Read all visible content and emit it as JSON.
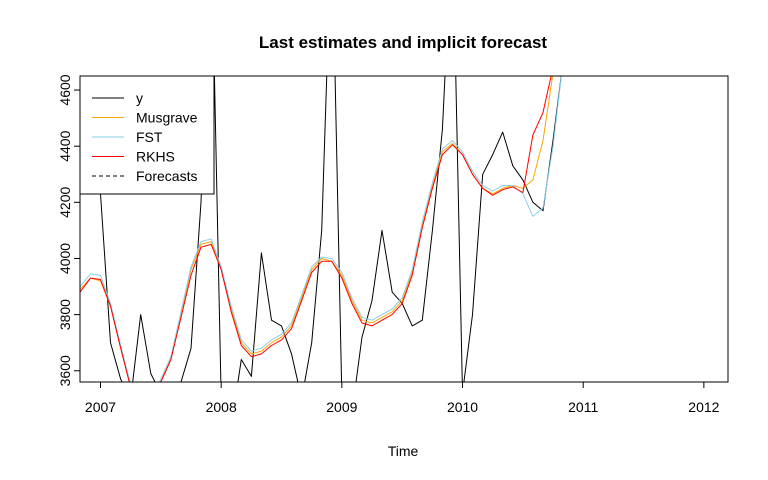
{
  "chart_data": {
    "type": "line",
    "title": "Last estimates and implicit forecast",
    "xlabel": "Time",
    "ylabel": "",
    "xlim": [
      2006.83,
      2012.2
    ],
    "ylim": [
      3560,
      4650
    ],
    "x_ticks": [
      2007,
      2008,
      2009,
      2010,
      2011,
      2012
    ],
    "y_ticks": [
      3600,
      3800,
      4000,
      4200,
      4400,
      4600
    ],
    "grid": false,
    "legend_position": "top-left",
    "legend": [
      {
        "label": "y",
        "color": "#000000",
        "dash": false
      },
      {
        "label": "Musgrave",
        "color": "#FFA500",
        "dash": false
      },
      {
        "label": "FST",
        "color": "#87CEEB",
        "dash": false
      },
      {
        "label": "RKHS",
        "color": "#FF0000",
        "dash": false
      },
      {
        "label": "Forecasts",
        "color": "#000000",
        "dash": true
      }
    ],
    "series": [
      {
        "name": "y",
        "color": "#000000",
        "x": [
          2006.83,
          2006.917,
          2007.0,
          2007.083,
          2007.167,
          2007.25,
          2007.333,
          2007.417,
          2007.5,
          2007.583,
          2007.667,
          2007.75,
          2007.833,
          2007.917,
          2008.0,
          2008.083,
          2008.167,
          2008.25,
          2008.333,
          2008.417,
          2008.5,
          2008.583,
          2008.667,
          2008.75,
          2008.833,
          2008.917,
          2009.0,
          2009.083,
          2009.167,
          2009.25,
          2009.333,
          2009.417,
          2009.5,
          2009.583,
          2009.667,
          2009.75,
          2009.833,
          2009.917,
          2010.0,
          2010.083,
          2010.167,
          2010.25,
          2010.333,
          2010.417,
          2010.5,
          2010.583,
          2010.667,
          2010.75,
          2010.833
        ],
        "values": [
          4240,
          4260,
          4230,
          3700,
          3570,
          3500,
          3800,
          3590,
          3520,
          3550,
          3560,
          3680,
          4200,
          5200,
          3500,
          3400,
          3640,
          3580,
          4020,
          3780,
          3760,
          3660,
          3500,
          3700,
          4100,
          5200,
          3500,
          3450,
          3720,
          3850,
          4100,
          3880,
          3840,
          3760,
          3780,
          4100,
          4460,
          5200,
          3520,
          3800,
          4300,
          4370,
          4450,
          4330,
          4280,
          4200,
          4170,
          4420,
          4700
        ]
      },
      {
        "name": "Musgrave",
        "color": "#FFA500",
        "x": [
          2006.83,
          2006.917,
          2007.0,
          2007.083,
          2007.167,
          2007.25,
          2007.333,
          2007.417,
          2007.5,
          2007.583,
          2007.667,
          2007.75,
          2007.833,
          2007.917,
          2008.0,
          2008.083,
          2008.167,
          2008.25,
          2008.333,
          2008.417,
          2008.5,
          2008.583,
          2008.667,
          2008.75,
          2008.833,
          2008.917,
          2009.0,
          2009.083,
          2009.167,
          2009.25,
          2009.333,
          2009.417,
          2009.5,
          2009.583,
          2009.667,
          2009.75,
          2009.833,
          2009.917,
          2010.0,
          2010.083,
          2010.167,
          2010.25,
          2010.333,
          2010.417,
          2010.5,
          2010.583,
          2010.667,
          2010.75
        ],
        "values": [
          3890,
          3930,
          3920,
          3830,
          3680,
          3540,
          3460,
          3480,
          3560,
          3640,
          3800,
          3960,
          4050,
          4060,
          3960,
          3820,
          3700,
          3660,
          3670,
          3700,
          3720,
          3760,
          3860,
          3960,
          4000,
          3990,
          3940,
          3850,
          3780,
          3770,
          3790,
          3810,
          3850,
          3950,
          4120,
          4260,
          4380,
          4410,
          4370,
          4300,
          4250,
          4230,
          4250,
          4260,
          4250,
          4280,
          4420,
          4660
        ]
      },
      {
        "name": "FST",
        "color": "#87CEEB",
        "x": [
          2006.83,
          2006.917,
          2007.0,
          2007.083,
          2007.167,
          2007.25,
          2007.333,
          2007.417,
          2007.5,
          2007.583,
          2007.667,
          2007.75,
          2007.833,
          2007.917,
          2008.0,
          2008.083,
          2008.167,
          2008.25,
          2008.333,
          2008.417,
          2008.5,
          2008.583,
          2008.667,
          2008.75,
          2008.833,
          2008.917,
          2009.0,
          2009.083,
          2009.167,
          2009.25,
          2009.333,
          2009.417,
          2009.5,
          2009.583,
          2009.667,
          2009.75,
          2009.833,
          2009.917,
          2010.0,
          2010.083,
          2010.167,
          2010.25,
          2010.333,
          2010.417,
          2010.5,
          2010.583,
          2010.667,
          2010.75,
          2010.833
        ],
        "values": [
          3900,
          3945,
          3940,
          3840,
          3690,
          3550,
          3470,
          3490,
          3570,
          3650,
          3810,
          3970,
          4060,
          4070,
          3970,
          3830,
          3710,
          3670,
          3680,
          3710,
          3730,
          3770,
          3870,
          3970,
          4005,
          4000,
          3950,
          3860,
          3790,
          3780,
          3800,
          3820,
          3860,
          3960,
          4130,
          4270,
          4390,
          4420,
          4380,
          4310,
          4260,
          4240,
          4260,
          4260,
          4230,
          4150,
          4180,
          4400,
          4700
        ]
      },
      {
        "name": "RKHS",
        "color": "#FF0000",
        "x": [
          2006.83,
          2006.917,
          2007.0,
          2007.083,
          2007.167,
          2007.25,
          2007.333,
          2007.417,
          2007.5,
          2007.583,
          2007.667,
          2007.75,
          2007.833,
          2007.917,
          2008.0,
          2008.083,
          2008.167,
          2008.25,
          2008.333,
          2008.417,
          2008.5,
          2008.583,
          2008.667,
          2008.75,
          2008.833,
          2008.917,
          2009.0,
          2009.083,
          2009.167,
          2009.25,
          2009.333,
          2009.417,
          2009.5,
          2009.583,
          2009.667,
          2009.75,
          2009.833,
          2009.917,
          2010.0,
          2010.083,
          2010.167,
          2010.25,
          2010.333,
          2010.417,
          2010.5,
          2010.583,
          2010.667,
          2010.75
        ],
        "values": [
          3880,
          3930,
          3925,
          3830,
          3680,
          3540,
          3460,
          3480,
          3560,
          3640,
          3790,
          3940,
          4040,
          4050,
          3960,
          3810,
          3690,
          3650,
          3660,
          3690,
          3710,
          3750,
          3850,
          3950,
          3990,
          3990,
          3930,
          3840,
          3770,
          3760,
          3780,
          3800,
          3840,
          3940,
          4110,
          4250,
          4370,
          4405,
          4370,
          4300,
          4250,
          4225,
          4245,
          4255,
          4235,
          4440,
          4520,
          4680
        ]
      }
    ]
  }
}
